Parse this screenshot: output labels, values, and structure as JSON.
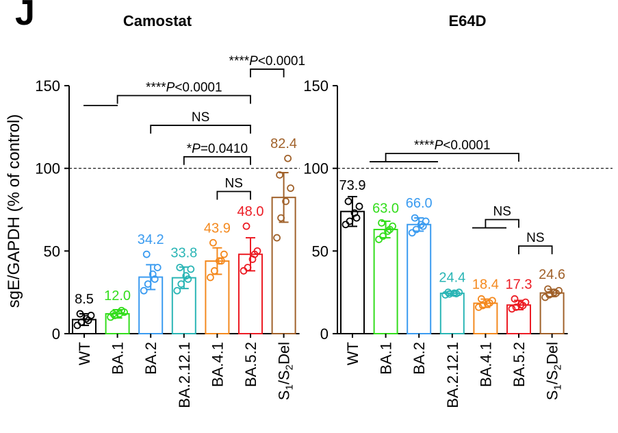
{
  "figure": {
    "panel_letter": "J",
    "ylabel": "sgE/GAPDH (% of control)",
    "reference_line": 100
  },
  "chart_data": [
    {
      "type": "bar",
      "title": "Camostat",
      "ylabel": "sgE/GAPDH (% of control)",
      "ylim": [
        0,
        150
      ],
      "yticks": [
        0,
        50,
        100,
        150
      ],
      "categories": [
        "WT",
        "BA.1",
        "BA.2",
        "BA.2.12.1",
        "BA.4.1",
        "BA.5.2",
        "S1/S2Del"
      ],
      "values": [
        8.5,
        12.0,
        34.2,
        33.8,
        43.9,
        48.0,
        82.4
      ],
      "value_labels": [
        "8.5",
        "12.0",
        "34.2",
        "33.8",
        "43.9",
        "48.0",
        "82.4"
      ],
      "error": [
        3.5,
        2.5,
        7.5,
        6.5,
        8,
        10,
        15
      ],
      "points": [
        [
          5,
          7,
          9,
          11,
          12,
          8
        ],
        [
          10,
          11,
          12,
          13,
          12,
          14
        ],
        [
          26,
          30,
          36,
          40,
          48,
          33
        ],
        [
          26,
          30,
          35,
          39,
          40,
          33
        ],
        [
          34,
          38,
          44,
          48,
          55,
          44
        ],
        [
          38,
          40,
          45,
          50,
          65,
          48
        ],
        [
          58,
          70,
          80,
          88,
          96,
          106
        ]
      ],
      "colors": [
        "#000000",
        "#33dd1c",
        "#3a9bf0",
        "#2ab5b5",
        "#f4891e",
        "#ec1c24",
        "#a0612a"
      ],
      "annotations": [
        {
          "text": "NS",
          "from": 4,
          "to": 5,
          "y": 86
        },
        {
          "text": "*P=0.0410",
          "from": 3,
          "to": 5,
          "y": 107
        },
        {
          "text": "NS",
          "from": 2,
          "to": 5,
          "y": 126
        },
        {
          "text": "****P<0.0001",
          "from": 1,
          "to": 5,
          "y": 144
        },
        {
          "text": "****P<0.0001",
          "from": 5,
          "to": 6,
          "y": 160
        }
      ]
    },
    {
      "type": "bar",
      "title": "E64D",
      "ylim": [
        0,
        150
      ],
      "yticks": [
        0,
        50,
        100,
        150
      ],
      "categories": [
        "WT",
        "BA.1",
        "BA.2",
        "BA.2.12.1",
        "BA.4.1",
        "BA.5.2",
        "S1/S2Del"
      ],
      "values": [
        73.9,
        63.0,
        66.0,
        24.4,
        18.4,
        17.3,
        24.6
      ],
      "value_labels": [
        "73.9",
        "63.0",
        "66.0",
        "24.4",
        "18.4",
        "17.3",
        "24.6"
      ],
      "error": [
        9,
        5,
        4,
        1.2,
        2.5,
        2.8,
        2.2
      ],
      "points": [
        [
          66,
          68,
          73,
          77,
          80,
          70
        ],
        [
          57,
          59,
          62,
          65,
          67,
          63
        ],
        [
          61,
          63,
          66,
          68,
          70,
          65
        ],
        [
          23.5,
          24,
          24.5,
          25,
          25,
          24.2
        ],
        [
          16,
          17,
          18,
          20,
          21,
          18.5
        ],
        [
          15,
          16,
          17.5,
          19,
          21,
          17
        ],
        [
          22,
          23.5,
          25,
          26,
          27,
          24.5
        ]
      ],
      "colors": [
        "#000000",
        "#33dd1c",
        "#3a9bf0",
        "#2ab5b5",
        "#f4891e",
        "#ec1c24",
        "#a0612a"
      ],
      "annotations": [
        {
          "text": "NS",
          "from": 5,
          "to": 6,
          "y": 53
        },
        {
          "text": "NS",
          "from": 4,
          "to": 5,
          "y": 69
        },
        {
          "text": "****P<0.0001",
          "from": 1,
          "to": 5,
          "y": 109
        }
      ]
    }
  ]
}
